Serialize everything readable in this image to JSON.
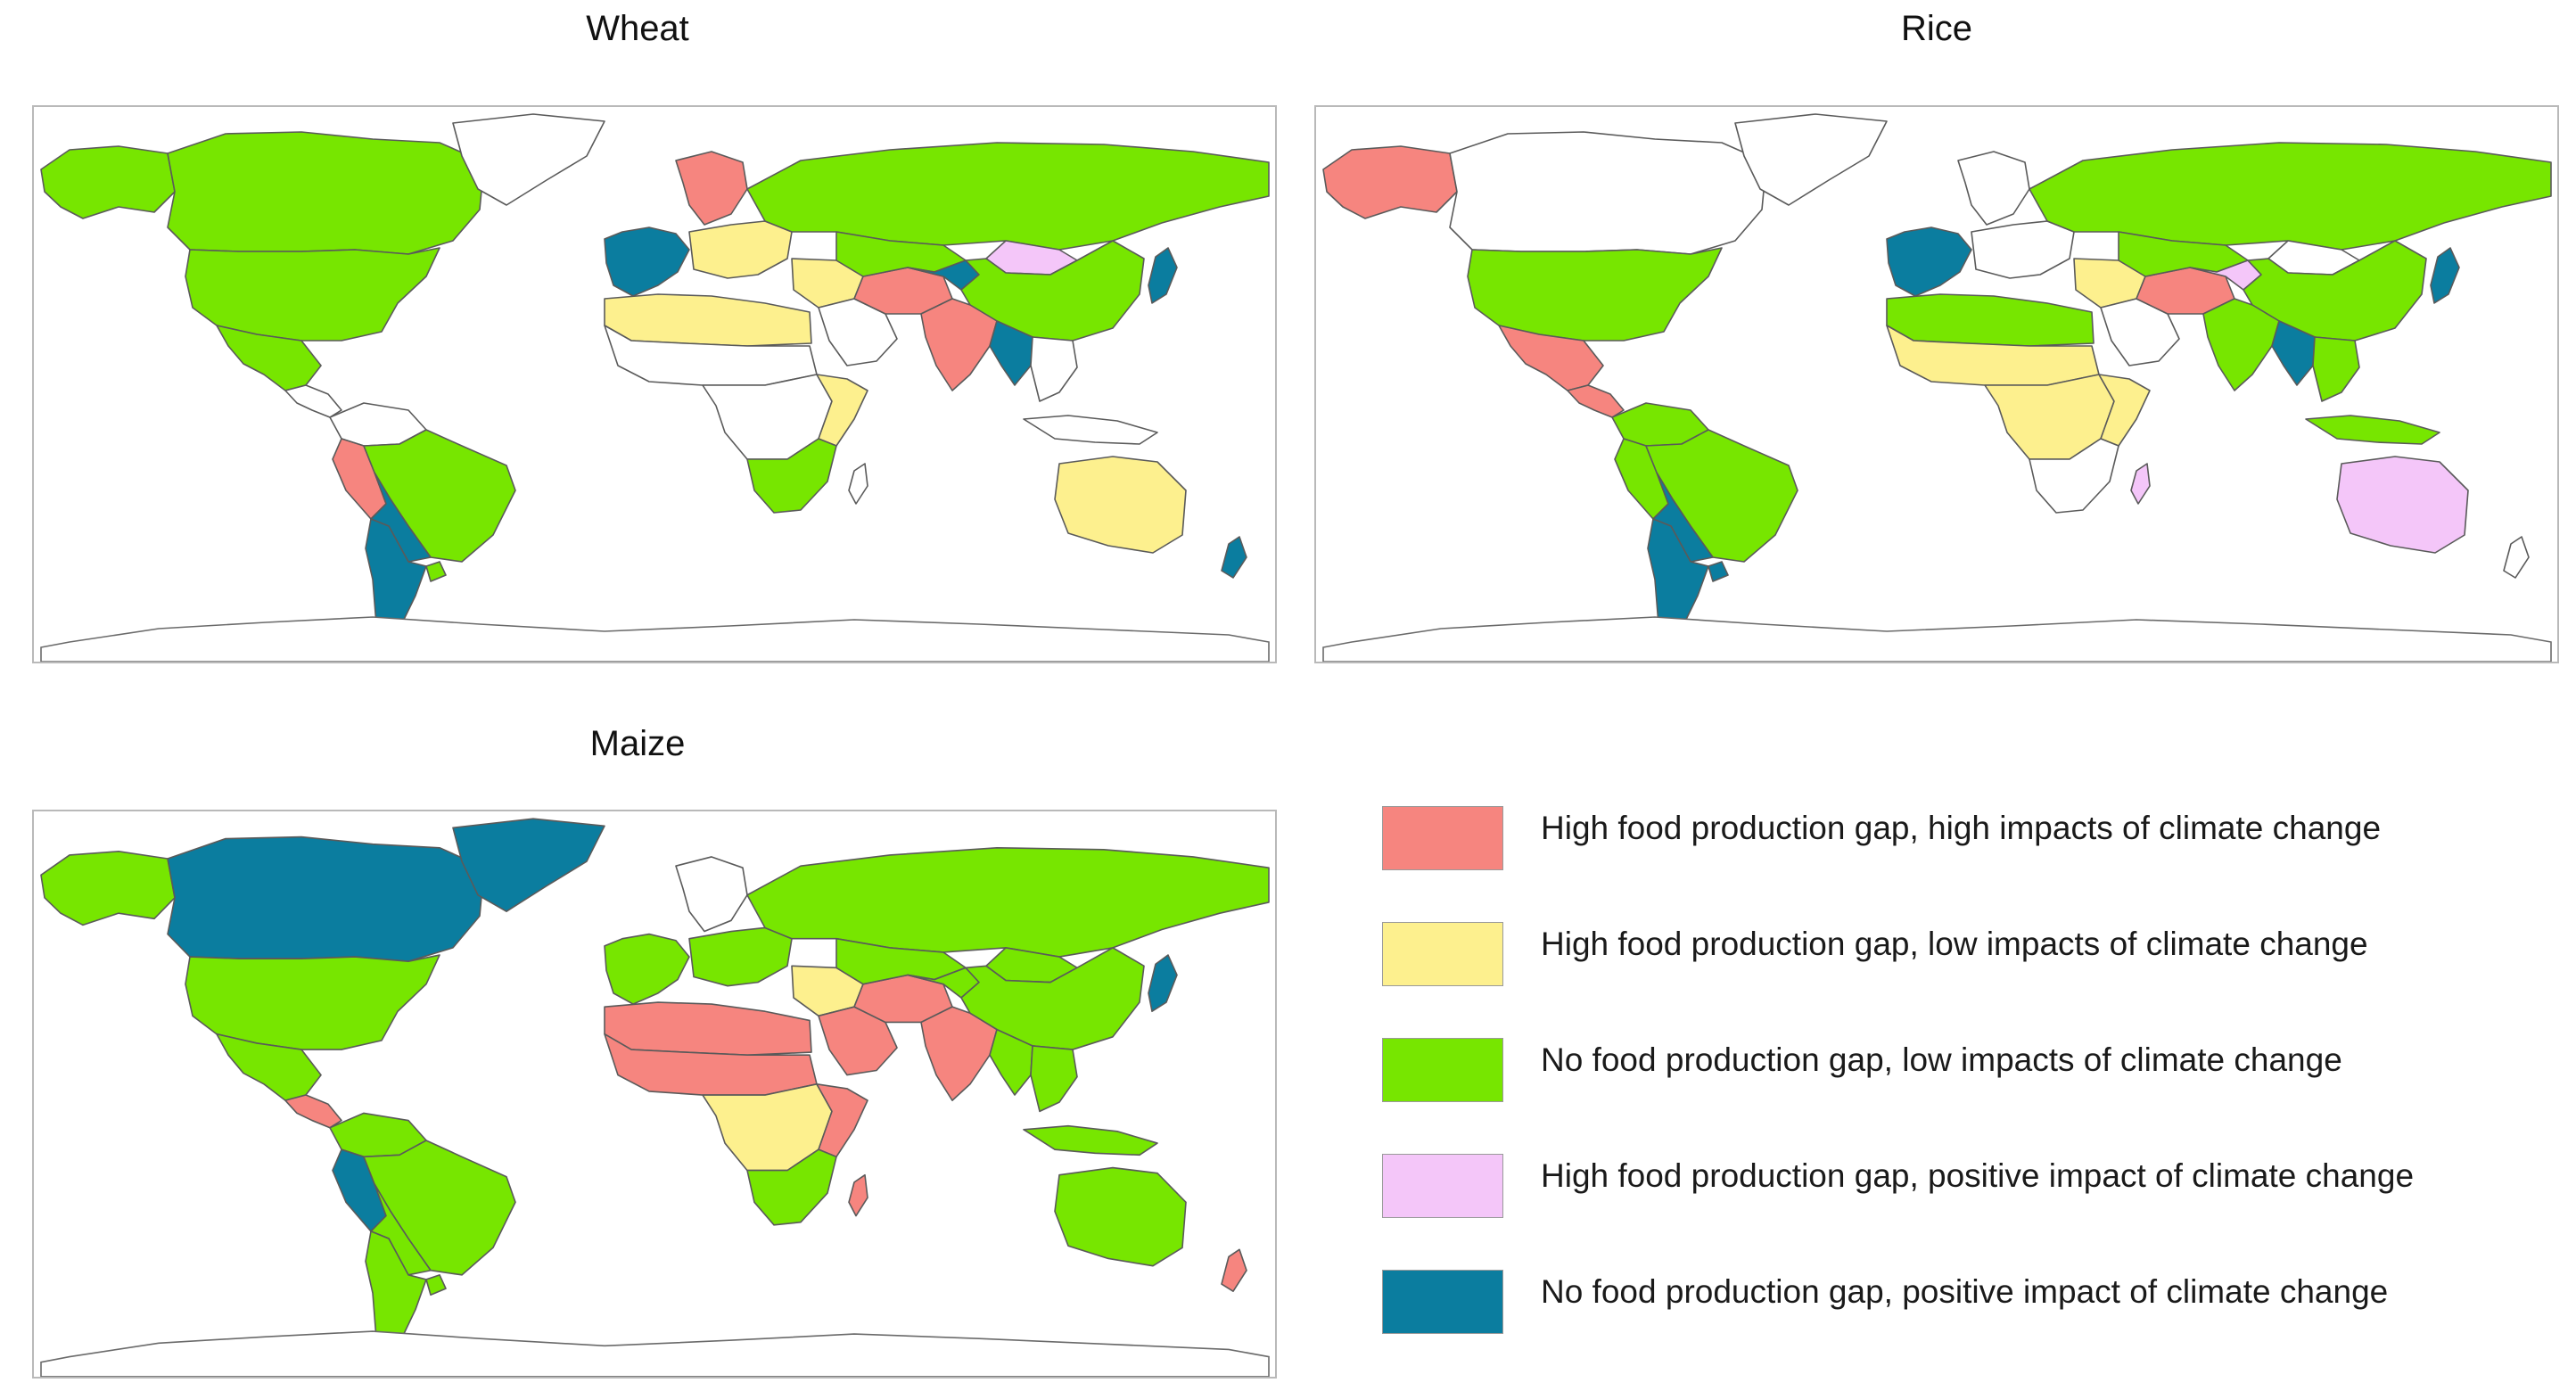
{
  "figure": {
    "panels": [
      {
        "id": "wheat",
        "title": "Wheat"
      },
      {
        "id": "rice",
        "title": "Rice"
      },
      {
        "id": "maize",
        "title": "Maize"
      }
    ]
  },
  "colors": {
    "high_gap_high_impact": "#f6857f",
    "high_gap_low_impact": "#fdf08e",
    "no_gap_low_impact": "#77e600",
    "high_gap_positive_impact": "#f4c6f9",
    "no_gap_positive_impact": "#0b7d9f",
    "no_data": "#ffffff"
  },
  "legend": {
    "items": [
      {
        "key": "high_gap_high_impact",
        "label": "High food production gap, high impacts of climate change"
      },
      {
        "key": "high_gap_low_impact",
        "label": "High food production gap, low impacts of climate change"
      },
      {
        "key": "no_gap_low_impact",
        "label": "No food production gap, low impacts of climate change"
      },
      {
        "key": "high_gap_positive_impact",
        "label": "High food production gap, positive impact of climate change"
      },
      {
        "key": "no_gap_positive_impact",
        "label": "No food production gap, positive impact of climate change"
      }
    ]
  },
  "maps": {
    "wheat": {
      "canada": "no_gap_low_impact",
      "alaska": "no_gap_low_impact",
      "greenland": "no_data",
      "usa": "no_gap_low_impact",
      "mexico": "no_gap_low_impact",
      "central_america": "no_data",
      "colombia_venezuela": "no_data",
      "brazil": "no_gap_low_impact",
      "peru_ecuador": "high_gap_high_impact",
      "bolivia_paraguay": "no_gap_positive_impact",
      "argentina_chile": "no_gap_positive_impact",
      "uruguay": "no_gap_low_impact",
      "western_europe": "no_gap_positive_impact",
      "scandinavia": "high_gap_high_impact",
      "eastern_europe": "high_gap_low_impact",
      "russia": "no_gap_low_impact",
      "north_africa": "high_gap_low_impact",
      "sahel": "no_data",
      "central_africa": "no_data",
      "east_africa": "high_gap_low_impact",
      "southern_africa": "no_gap_low_impact",
      "madagascar": "no_data",
      "middle_east": "high_gap_low_impact",
      "arabia": "no_data",
      "iran_afghan": "high_gap_high_impact",
      "central_asia": "no_gap_positive_impact",
      "kazakhstan": "no_gap_low_impact",
      "mongolia": "high_gap_positive_impact",
      "china": "no_gap_low_impact",
      "india": "high_gap_high_impact",
      "bangladesh_myanmar": "no_gap_positive_impact",
      "se_asia": "no_data",
      "indonesia": "no_data",
      "japan": "no_gap_positive_impact",
      "australia": "high_gap_low_impact",
      "new_zealand": "no_gap_positive_impact"
    },
    "rice": {
      "canada": "no_data",
      "alaska": "high_gap_high_impact",
      "greenland": "no_data",
      "usa": "no_gap_low_impact",
      "mexico": "high_gap_high_impact",
      "central_america": "high_gap_high_impact",
      "colombia_venezuela": "no_gap_low_impact",
      "brazil": "no_gap_low_impact",
      "peru_ecuador": "no_gap_low_impact",
      "bolivia_paraguay": "no_gap_positive_impact",
      "argentina_chile": "no_gap_positive_impact",
      "uruguay": "no_gap_positive_impact",
      "western_europe": "no_gap_positive_impact",
      "scandinavia": "no_data",
      "eastern_europe": "no_data",
      "russia": "no_gap_low_impact",
      "north_africa": "no_gap_low_impact",
      "sahel": "high_gap_low_impact",
      "central_africa": "high_gap_low_impact",
      "east_africa": "high_gap_low_impact",
      "southern_africa": "no_data",
      "madagascar": "high_gap_positive_impact",
      "middle_east": "high_gap_low_impact",
      "arabia": "no_data",
      "iran_afghan": "high_gap_high_impact",
      "central_asia": "high_gap_positive_impact",
      "kazakhstan": "no_gap_low_impact",
      "mongolia": "no_data",
      "china": "no_gap_low_impact",
      "india": "no_gap_low_impact",
      "bangladesh_myanmar": "no_gap_positive_impact",
      "se_asia": "no_gap_low_impact",
      "indonesia": "no_gap_low_impact",
      "japan": "no_gap_positive_impact",
      "australia": "high_gap_positive_impact",
      "new_zealand": "no_data"
    },
    "maize": {
      "canada": "no_gap_positive_impact",
      "alaska": "no_gap_low_impact",
      "greenland": "no_gap_positive_impact",
      "usa": "no_gap_low_impact",
      "mexico": "no_gap_low_impact",
      "central_america": "high_gap_high_impact",
      "colombia_venezuela": "no_gap_low_impact",
      "brazil": "no_gap_low_impact",
      "peru_ecuador": "no_gap_positive_impact",
      "bolivia_paraguay": "no_gap_low_impact",
      "argentina_chile": "no_gap_low_impact",
      "uruguay": "no_gap_low_impact",
      "western_europe": "no_gap_low_impact",
      "scandinavia": "no_data",
      "eastern_europe": "no_gap_low_impact",
      "russia": "no_gap_low_impact",
      "north_africa": "high_gap_high_impact",
      "sahel": "high_gap_high_impact",
      "central_africa": "high_gap_low_impact",
      "east_africa": "high_gap_high_impact",
      "southern_africa": "no_gap_low_impact",
      "madagascar": "high_gap_high_impact",
      "middle_east": "high_gap_low_impact",
      "arabia": "high_gap_high_impact",
      "iran_afghan": "high_gap_high_impact",
      "central_asia": "no_gap_low_impact",
      "kazakhstan": "no_gap_low_impact",
      "mongolia": "no_gap_low_impact",
      "china": "no_gap_low_impact",
      "india": "high_gap_high_impact",
      "bangladesh_myanmar": "no_gap_low_impact",
      "se_asia": "no_gap_low_impact",
      "indonesia": "no_gap_low_impact",
      "japan": "no_gap_positive_impact",
      "australia": "no_gap_low_impact",
      "new_zealand": "high_gap_high_impact"
    }
  }
}
